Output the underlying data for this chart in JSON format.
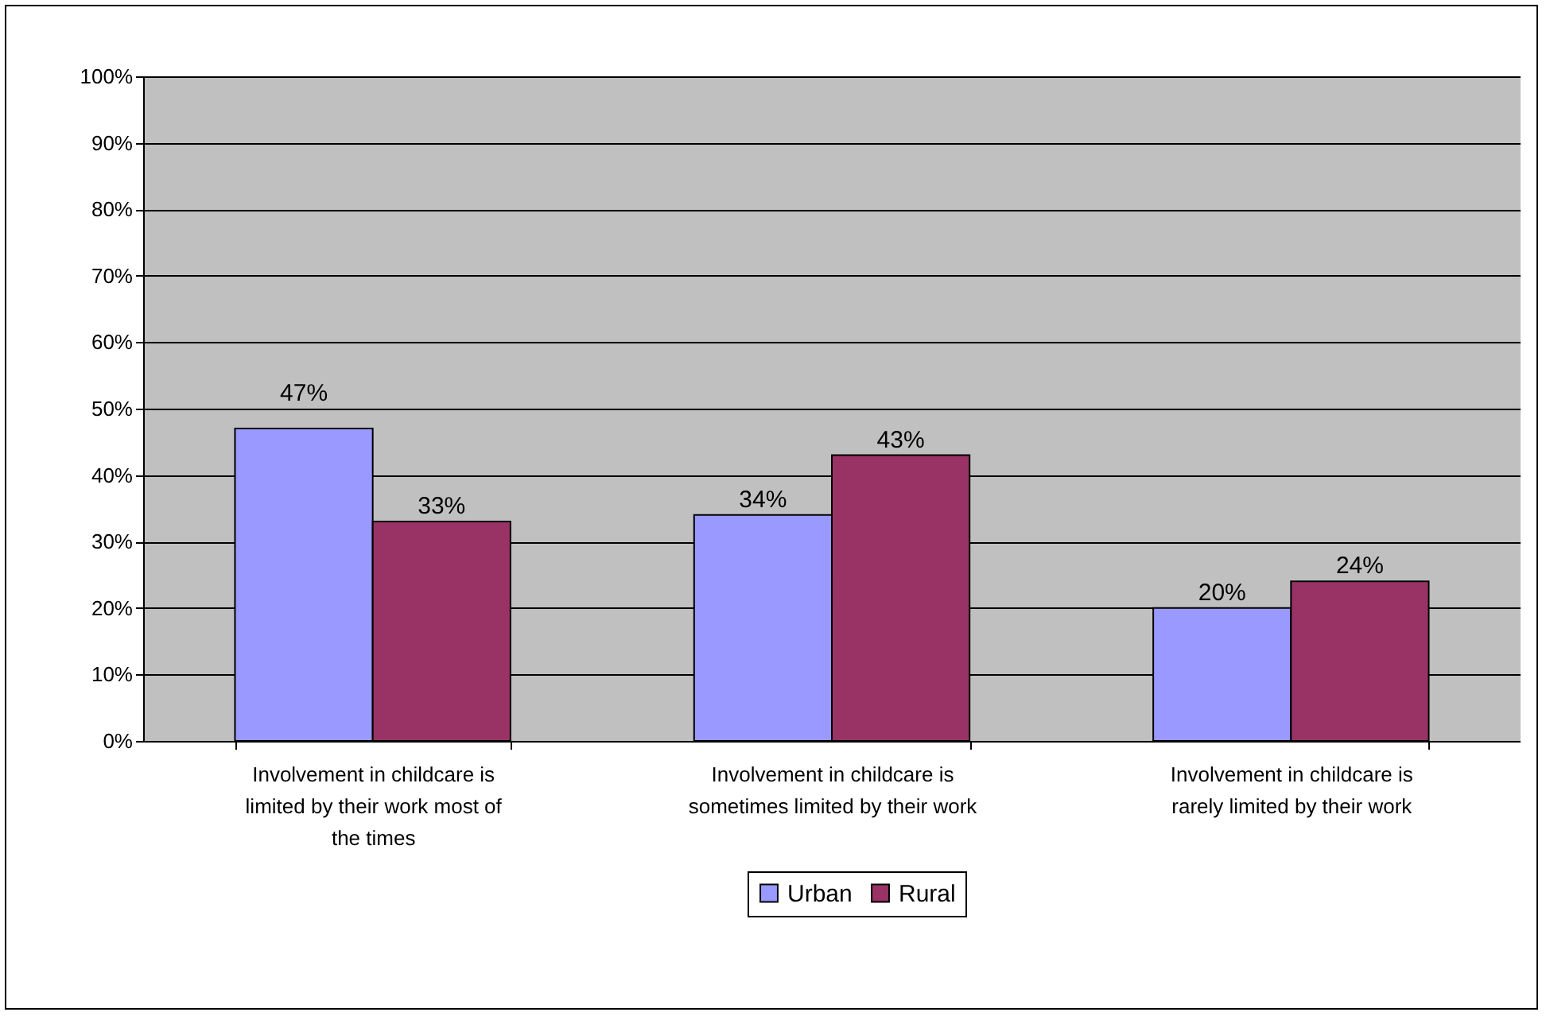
{
  "chart_data": {
    "type": "bar",
    "categories": [
      "Involvement in childcare is limited by their work most of the times",
      "Involvement in childcare is sometimes limited by their work",
      "Involvement in childcare is rarely limited by their work"
    ],
    "series": [
      {
        "name": "Urban",
        "color": "#9999ff",
        "values": [
          47,
          34,
          20
        ],
        "value_labels": [
          "47%",
          "34%",
          "20%"
        ]
      },
      {
        "name": "Rural",
        "color": "#993366",
        "values": [
          33,
          43,
          24
        ],
        "value_labels": [
          "33%",
          "43%",
          "24%"
        ]
      }
    ],
    "ylim": [
      0,
      100
    ],
    "yticks": [
      {
        "value": 0,
        "label": "0%"
      },
      {
        "value": 10,
        "label": "10%"
      },
      {
        "value": 20,
        "label": "20%"
      },
      {
        "value": 30,
        "label": "30%"
      },
      {
        "value": 40,
        "label": "40%"
      },
      {
        "value": 50,
        "label": "50%"
      },
      {
        "value": 60,
        "label": "60%"
      },
      {
        "value": 70,
        "label": "70%"
      },
      {
        "value": 80,
        "label": "80%"
      },
      {
        "value": 90,
        "label": "90%"
      },
      {
        "value": 100,
        "label": "100%"
      }
    ],
    "grid": "y",
    "legend": "bottom"
  }
}
